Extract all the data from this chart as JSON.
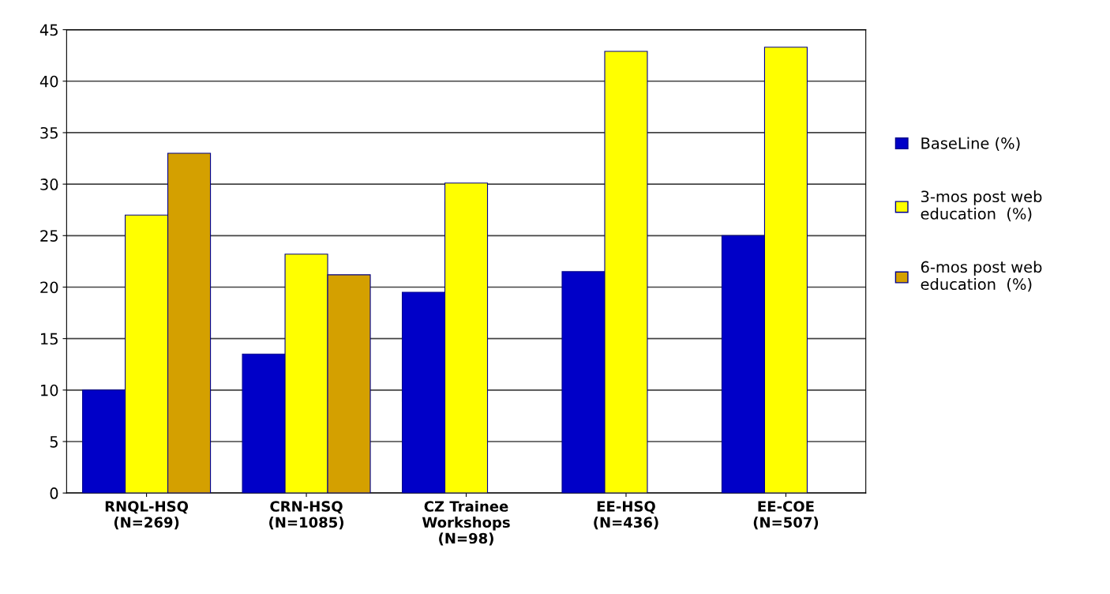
{
  "chart_data": {
    "type": "bar",
    "categories": [
      "RNQL-HSQ\n(N=269)",
      "CRN-HSQ\n(N=1085)",
      "CZ Trainee\nWorkshops\n(N=98)",
      "EE-HSQ\n(N=436)",
      "EE-COE\n(N=507)"
    ],
    "series": [
      {
        "name": "BaseLine (%)",
        "color": "#0000c8",
        "values": [
          10,
          13.5,
          19.5,
          21.5,
          25
        ]
      },
      {
        "name": "3-mos post web\neducation  (%)",
        "color": "#ffff00",
        "values": [
          27,
          23.2,
          30.1,
          42.9,
          43.3
        ]
      },
      {
        "name": "6-mos post web\neducation  (%)",
        "color": "#d4a000",
        "values": [
          33,
          21.2,
          null,
          null,
          null
        ]
      }
    ],
    "ylim": [
      0,
      45
    ],
    "yticks": [
      0,
      5,
      10,
      15,
      20,
      25,
      30,
      35,
      40,
      45
    ],
    "grid": "y",
    "legend": "right"
  }
}
